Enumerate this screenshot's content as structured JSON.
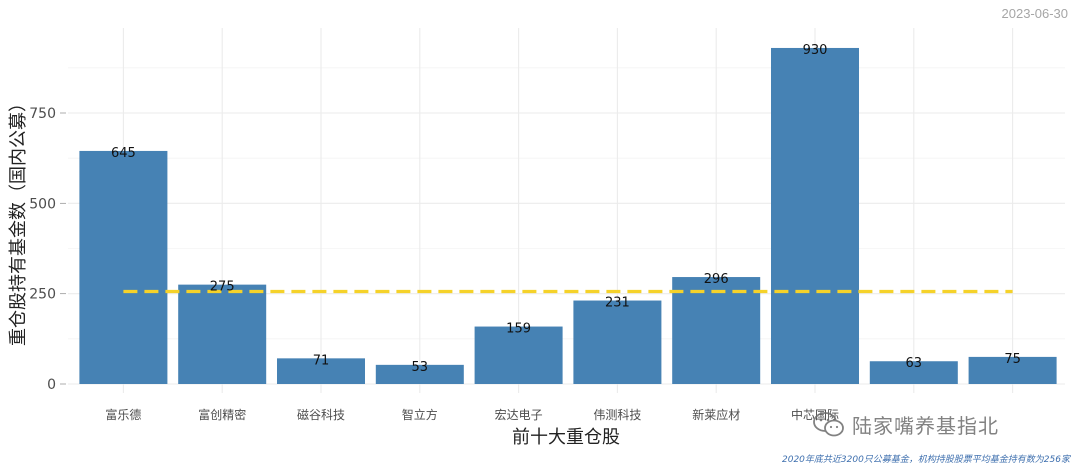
{
  "header": {
    "date": "2023-06-30"
  },
  "footer": {
    "caption": "2020年底共近3200只公募基金，机构持股股票平均基金持有数为256家"
  },
  "watermark": {
    "text": "陆家嘴养基指北",
    "icon": "wechat-icon"
  },
  "chart_data": {
    "type": "bar",
    "title": "",
    "xlabel": "前十大重仓股",
    "ylabel": "重仓股持有基金数（国内公募）",
    "categories": [
      "富乐德",
      "富创精密",
      "磁谷科技",
      "智立方",
      "宏达电子",
      "伟测科技",
      "新莱应材",
      "中芯国际",
      "",
      ""
    ],
    "values": [
      645,
      275,
      71,
      53,
      159,
      231,
      296,
      930,
      63,
      75
    ],
    "data_labels": [
      "645",
      "275",
      "71",
      "53",
      "159",
      "231",
      "296",
      "930",
      "63",
      "75"
    ],
    "yticks": [
      0,
      250,
      500,
      750
    ],
    "ytick_labels": [
      "0",
      "250",
      "500",
      "750"
    ],
    "ylim": [
      0,
      980
    ],
    "reference_line": {
      "value": 256,
      "style": "dashed",
      "color": "#f5d22a"
    },
    "bar_color": "#4682b4",
    "grid": true
  }
}
